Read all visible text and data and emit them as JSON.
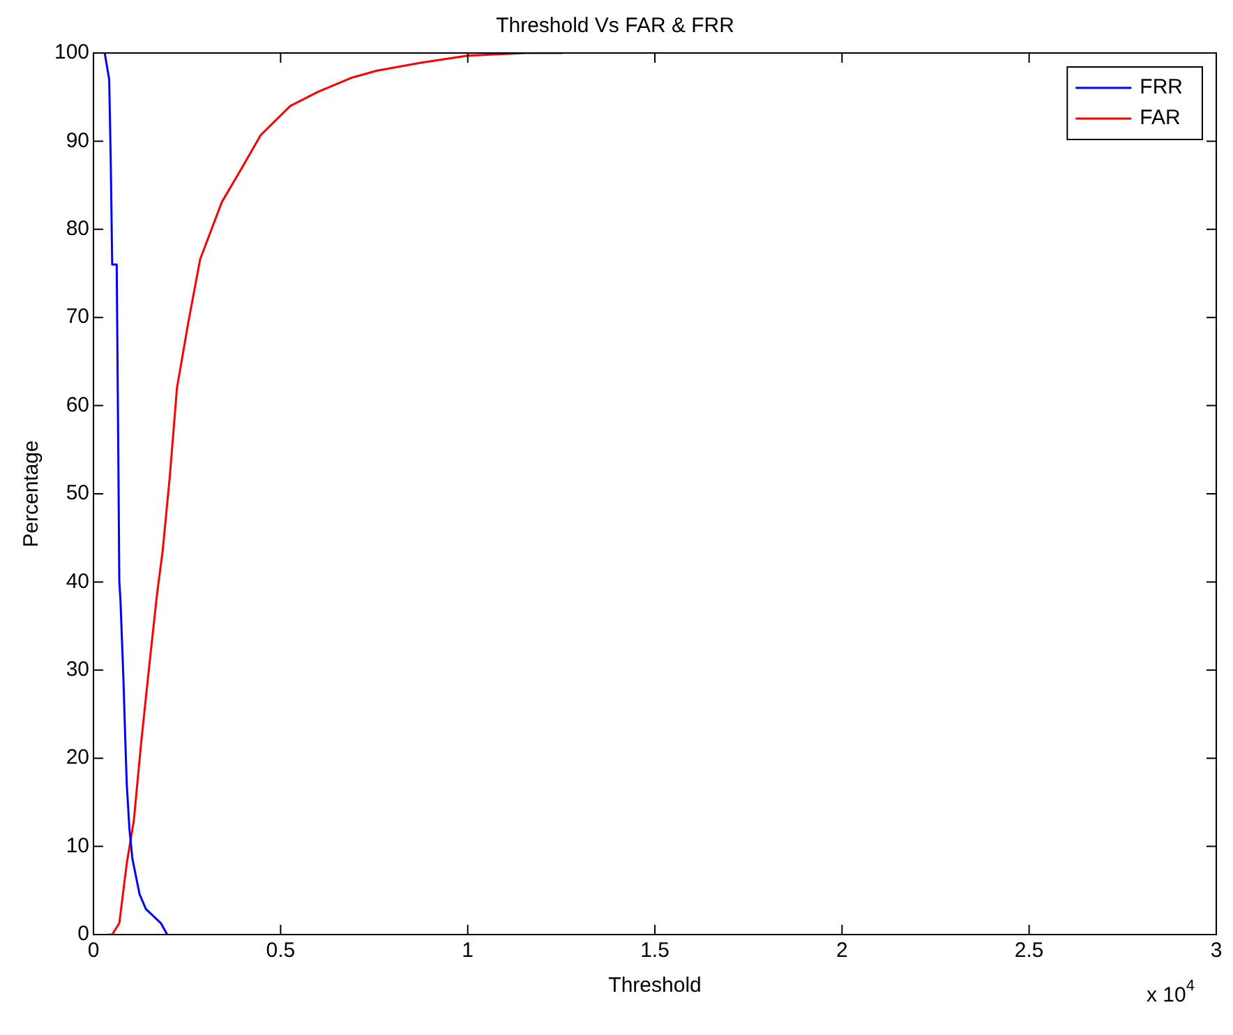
{
  "chart_data": {
    "type": "line",
    "title": "Threshold Vs FAR & FRR",
    "xlabel": "Threshold",
    "ylabel": "Percentage",
    "annotations": [
      "x 10$^{4}$"
    ],
    "xlim": [
      0,
      3
    ],
    "xticks": [
      0,
      0.5,
      1,
      1.5,
      2,
      2.5,
      3
    ],
    "ylim": [
      0,
      100
    ],
    "yticks": [
      0,
      10,
      20,
      30,
      40,
      50,
      60,
      70,
      80,
      90,
      100
    ],
    "grid": false,
    "legend": "top right",
    "marker": "none",
    "line_style": "solid",
    "series": [
      {
        "name": "FRR",
        "color": "#0000ff",
        "x": [
          0.03,
          0.042,
          0.046,
          0.05,
          0.062,
          0.066,
          0.069,
          0.072,
          0.08,
          0.085,
          0.089,
          0.096,
          0.104,
          0.123,
          0.14,
          0.18,
          0.197
        ],
        "values": [
          100,
          97,
          88,
          76,
          76,
          56,
          40,
          38,
          29,
          22,
          17,
          12,
          8.6,
          4.6,
          2.9,
          1.3,
          0
        ]
      },
      {
        "name": "FAR",
        "color": "#ff0000",
        "x": [
          0.04,
          0.05,
          0.069,
          0.089,
          0.108,
          0.127,
          0.15,
          0.17,
          0.185,
          0.204,
          0.223,
          0.254,
          0.285,
          0.343,
          0.397,
          0.447,
          0.526,
          0.6,
          0.69,
          0.758,
          0.874,
          1.0,
          1.156,
          1.253
        ],
        "values": [
          0,
          0,
          1.3,
          8.1,
          13,
          21.6,
          30.9,
          38.7,
          43.6,
          52,
          62,
          69.6,
          76.6,
          83.1,
          87,
          90.7,
          94,
          95.6,
          97.2,
          98,
          98.9,
          99.7,
          100,
          100
        ]
      }
    ]
  }
}
